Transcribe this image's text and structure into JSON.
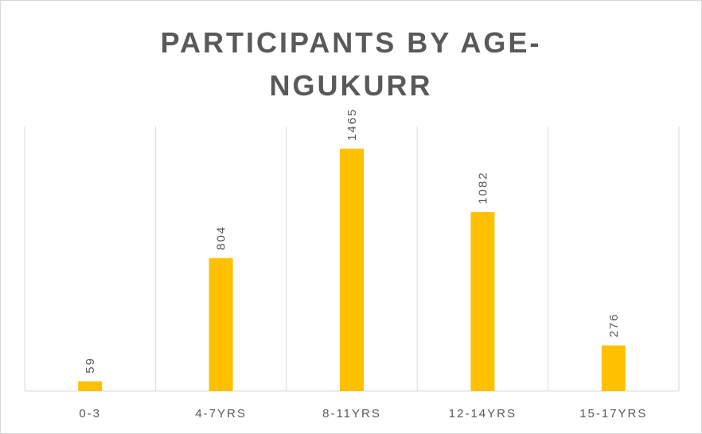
{
  "chart_data": {
    "type": "bar",
    "title": "PARTICIPANTS BY AGE-NGUKURR",
    "categories": [
      "0-3",
      "4-7YRS",
      "8-11YRS",
      "12-14YRS",
      "15-17YRS"
    ],
    "values": [
      59,
      804,
      1465,
      1082,
      276
    ],
    "color": "#ffc000",
    "ylim": [
      0,
      1600
    ]
  }
}
